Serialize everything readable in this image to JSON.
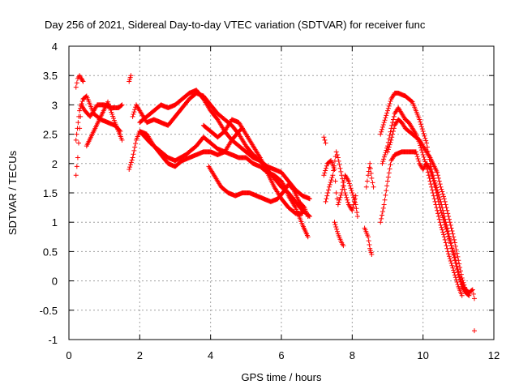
{
  "chart_data": {
    "type": "scatter",
    "title": "Day 256 of 2021, Sidereal Day-to-day VTEC variation (SDTVAR) for receiver func",
    "xlabel": "GPS time / hours",
    "ylabel": "SDTVAR / TECUs",
    "xlim": [
      0,
      12
    ],
    "ylim": [
      -1,
      4
    ],
    "xticks": [
      0,
      2,
      4,
      6,
      8,
      10,
      12
    ],
    "yticks": [
      -1,
      -0.5,
      0,
      0.5,
      1,
      1.5,
      2,
      2.5,
      3,
      3.5,
      4
    ],
    "grid": true,
    "marker": "+",
    "color": "#ff0000",
    "series_traces": [
      {
        "name": "trace-a",
        "points": [
          [
            0.2,
            1.8
          ],
          [
            0.25,
            2.1
          ],
          [
            0.3,
            2.6
          ],
          [
            0.35,
            3.0
          ],
          [
            0.45,
            2.9
          ],
          [
            0.6,
            2.8
          ],
          [
            0.8,
            3.0
          ],
          [
            1.0,
            3.0
          ],
          [
            1.2,
            2.95
          ],
          [
            1.4,
            2.95
          ],
          [
            1.5,
            3.0
          ]
        ]
      },
      {
        "name": "trace-b",
        "points": [
          [
            0.2,
            2.4
          ],
          [
            0.3,
            2.9
          ],
          [
            0.4,
            3.1
          ],
          [
            0.5,
            3.15
          ],
          [
            0.6,
            3.0
          ],
          [
            0.7,
            2.85
          ],
          [
            0.9,
            2.75
          ],
          [
            1.1,
            2.7
          ],
          [
            1.3,
            2.65
          ],
          [
            1.45,
            2.55
          ]
        ]
      },
      {
        "name": "trace-c",
        "points": [
          [
            0.5,
            2.3
          ],
          [
            0.7,
            2.55
          ],
          [
            0.9,
            2.8
          ],
          [
            1.1,
            3.05
          ],
          [
            1.3,
            2.7
          ],
          [
            1.5,
            2.4
          ]
        ]
      },
      {
        "name": "trace-d",
        "points": [
          [
            0.2,
            3.3
          ],
          [
            0.25,
            3.45
          ],
          [
            0.3,
            3.5
          ],
          [
            0.35,
            3.45
          ],
          [
            0.4,
            3.4
          ]
        ]
      },
      {
        "name": "trace-e",
        "points": [
          [
            1.7,
            3.4
          ],
          [
            1.75,
            3.5
          ]
        ]
      },
      {
        "name": "trace-f",
        "points": [
          [
            1.7,
            1.9
          ],
          [
            1.8,
            2.1
          ],
          [
            1.9,
            2.4
          ],
          [
            2.0,
            2.55
          ],
          [
            2.2,
            2.5
          ],
          [
            2.4,
            2.3
          ],
          [
            2.6,
            2.15
          ],
          [
            2.8,
            2.0
          ],
          [
            3.0,
            1.95
          ],
          [
            3.2,
            2.05
          ],
          [
            3.4,
            2.1
          ],
          [
            3.6,
            2.15
          ],
          [
            3.8,
            2.2
          ],
          [
            4.0,
            2.2
          ],
          [
            4.2,
            2.15
          ],
          [
            4.4,
            2.2
          ],
          [
            4.6,
            2.15
          ],
          [
            4.8,
            2.1
          ],
          [
            5.0,
            2.1
          ],
          [
            5.2,
            2.0
          ],
          [
            5.4,
            1.95
          ],
          [
            5.6,
            1.85
          ],
          [
            5.8,
            1.8
          ],
          [
            6.0,
            1.7
          ],
          [
            6.1,
            1.6
          ],
          [
            6.2,
            1.45
          ],
          [
            6.3,
            1.35
          ],
          [
            6.4,
            1.25
          ],
          [
            6.5,
            1.1
          ],
          [
            6.6,
            0.95
          ],
          [
            6.75,
            0.75
          ]
        ]
      },
      {
        "name": "trace-g",
        "points": [
          [
            1.8,
            2.8
          ],
          [
            1.9,
            3.0
          ],
          [
            2.0,
            2.9
          ],
          [
            2.2,
            2.7
          ],
          [
            2.4,
            2.75
          ],
          [
            2.6,
            2.7
          ],
          [
            2.8,
            2.65
          ],
          [
            3.0,
            2.8
          ],
          [
            3.2,
            2.95
          ],
          [
            3.4,
            3.1
          ],
          [
            3.6,
            3.2
          ],
          [
            3.8,
            3.15
          ],
          [
            4.0,
            3.0
          ],
          [
            4.2,
            2.85
          ],
          [
            4.4,
            2.75
          ],
          [
            4.6,
            2.65
          ],
          [
            4.8,
            2.5
          ],
          [
            5.0,
            2.3
          ],
          [
            5.2,
            2.15
          ],
          [
            5.4,
            2.05
          ],
          [
            5.6,
            1.95
          ],
          [
            5.8,
            1.9
          ],
          [
            6.0,
            1.85
          ],
          [
            6.2,
            1.7
          ],
          [
            6.4,
            1.55
          ],
          [
            6.6,
            1.45
          ],
          [
            6.8,
            1.4
          ]
        ]
      },
      {
        "name": "trace-h",
        "points": [
          [
            2.0,
            2.7
          ],
          [
            2.2,
            2.8
          ],
          [
            2.4,
            2.9
          ],
          [
            2.6,
            3.0
          ],
          [
            2.8,
            2.95
          ],
          [
            3.0,
            3.0
          ],
          [
            3.2,
            3.1
          ],
          [
            3.4,
            3.2
          ],
          [
            3.6,
            3.25
          ],
          [
            3.8,
            3.1
          ],
          [
            4.0,
            2.9
          ],
          [
            4.2,
            2.75
          ],
          [
            4.4,
            2.55
          ],
          [
            4.6,
            2.4
          ],
          [
            4.8,
            2.3
          ],
          [
            5.0,
            2.2
          ],
          [
            5.2,
            2.1
          ],
          [
            5.4,
            2.05
          ],
          [
            5.6,
            1.9
          ],
          [
            5.8,
            1.75
          ],
          [
            6.0,
            1.6
          ],
          [
            6.2,
            1.5
          ],
          [
            6.4,
            1.35
          ],
          [
            6.6,
            1.2
          ],
          [
            6.8,
            1.1
          ]
        ]
      },
      {
        "name": "trace-i",
        "points": [
          [
            2.0,
            2.55
          ],
          [
            2.3,
            2.35
          ],
          [
            2.6,
            2.2
          ],
          [
            2.8,
            2.1
          ],
          [
            3.0,
            2.05
          ],
          [
            3.3,
            2.15
          ],
          [
            3.6,
            2.3
          ],
          [
            3.8,
            2.45
          ],
          [
            4.0,
            2.35
          ],
          [
            4.2,
            2.25
          ],
          [
            4.4,
            2.2
          ],
          [
            4.6,
            2.4
          ],
          [
            4.8,
            2.55
          ],
          [
            4.9,
            2.6
          ]
        ]
      },
      {
        "name": "trace-j",
        "points": [
          [
            3.8,
            2.65
          ],
          [
            4.0,
            2.55
          ],
          [
            4.2,
            2.45
          ],
          [
            4.4,
            2.55
          ],
          [
            4.6,
            2.75
          ],
          [
            4.8,
            2.7
          ],
          [
            5.0,
            2.5
          ],
          [
            5.2,
            2.3
          ],
          [
            5.4,
            2.1
          ],
          [
            5.6,
            1.85
          ],
          [
            5.8,
            1.6
          ],
          [
            6.0,
            1.4
          ],
          [
            6.2,
            1.25
          ],
          [
            6.4,
            1.15
          ],
          [
            6.6,
            1.15
          ]
        ]
      },
      {
        "name": "trace-k",
        "points": [
          [
            3.95,
            1.95
          ],
          [
            4.1,
            1.8
          ],
          [
            4.3,
            1.6
          ],
          [
            4.5,
            1.5
          ],
          [
            4.7,
            1.45
          ],
          [
            4.9,
            1.5
          ],
          [
            5.1,
            1.5
          ],
          [
            5.3,
            1.45
          ],
          [
            5.5,
            1.4
          ],
          [
            5.7,
            1.35
          ],
          [
            5.9,
            1.4
          ],
          [
            6.1,
            1.55
          ],
          [
            6.2,
            1.65
          ],
          [
            6.35,
            1.55
          ],
          [
            6.5,
            1.35
          ],
          [
            6.65,
            1.25
          ],
          [
            6.75,
            1.1
          ]
        ]
      },
      {
        "name": "trace-l",
        "points": [
          [
            7.2,
            2.45
          ],
          [
            7.25,
            2.35
          ]
        ]
      },
      {
        "name": "trace-m",
        "points": [
          [
            7.2,
            1.8
          ],
          [
            7.3,
            2.0
          ],
          [
            7.4,
            2.05
          ],
          [
            7.5,
            1.9
          ],
          [
            7.55,
            1.5
          ],
          [
            7.6,
            1.3
          ],
          [
            7.7,
            1.5
          ],
          [
            7.8,
            1.8
          ],
          [
            7.9,
            1.7
          ],
          [
            8.0,
            1.5
          ],
          [
            8.1,
            1.3
          ],
          [
            8.15,
            1.1
          ]
        ]
      },
      {
        "name": "trace-n",
        "points": [
          [
            7.25,
            1.35
          ],
          [
            7.35,
            1.6
          ],
          [
            7.45,
            1.8
          ],
          [
            7.55,
            2.2
          ],
          [
            7.6,
            2.1
          ],
          [
            7.7,
            1.8
          ],
          [
            7.8,
            1.5
          ],
          [
            7.9,
            1.3
          ],
          [
            8.0,
            1.2
          ],
          [
            8.1,
            1.45
          ]
        ]
      },
      {
        "name": "trace-o",
        "points": [
          [
            7.5,
            1.0
          ],
          [
            7.6,
            0.8
          ],
          [
            7.7,
            0.65
          ],
          [
            7.75,
            0.6
          ]
        ]
      },
      {
        "name": "trace-p",
        "points": [
          [
            8.35,
            0.9
          ],
          [
            8.45,
            0.75
          ],
          [
            8.5,
            0.55
          ],
          [
            8.55,
            0.45
          ]
        ]
      },
      {
        "name": "trace-q",
        "points": [
          [
            8.4,
            1.6
          ],
          [
            8.45,
            1.8
          ],
          [
            8.5,
            2.0
          ],
          [
            8.55,
            1.75
          ],
          [
            8.6,
            1.6
          ]
        ]
      },
      {
        "name": "trace-r",
        "points": [
          [
            8.8,
            1.0
          ],
          [
            8.9,
            1.3
          ],
          [
            9.0,
            1.7
          ],
          [
            9.1,
            2.05
          ],
          [
            9.2,
            2.15
          ],
          [
            9.4,
            2.2
          ],
          [
            9.6,
            2.2
          ],
          [
            9.8,
            2.2
          ],
          [
            9.9,
            2.0
          ],
          [
            10.0,
            1.9
          ],
          [
            10.1,
            2.0
          ],
          [
            10.2,
            1.9
          ],
          [
            10.3,
            1.7
          ],
          [
            10.4,
            1.45
          ],
          [
            10.5,
            1.2
          ],
          [
            10.6,
            1.0
          ],
          [
            10.7,
            0.8
          ],
          [
            10.8,
            0.6
          ],
          [
            10.9,
            0.4
          ],
          [
            11.0,
            0.15
          ],
          [
            11.1,
            -0.05
          ],
          [
            11.2,
            -0.15
          ],
          [
            11.3,
            -0.2
          ]
        ]
      },
      {
        "name": "trace-s",
        "points": [
          [
            8.8,
            2.5
          ],
          [
            8.9,
            2.7
          ],
          [
            9.0,
            2.9
          ],
          [
            9.1,
            3.1
          ],
          [
            9.2,
            3.2
          ],
          [
            9.3,
            3.2
          ],
          [
            9.5,
            3.15
          ],
          [
            9.7,
            3.05
          ],
          [
            9.9,
            2.75
          ],
          [
            10.0,
            2.55
          ],
          [
            10.1,
            2.35
          ],
          [
            10.2,
            2.0
          ],
          [
            10.3,
            1.75
          ],
          [
            10.4,
            1.55
          ],
          [
            10.5,
            1.35
          ],
          [
            10.6,
            1.1
          ],
          [
            10.7,
            0.85
          ],
          [
            10.8,
            0.6
          ],
          [
            10.9,
            0.35
          ],
          [
            11.0,
            0.1
          ],
          [
            11.1,
            -0.1
          ],
          [
            11.2,
            -0.2
          ],
          [
            11.3,
            -0.25
          ]
        ]
      },
      {
        "name": "trace-t",
        "points": [
          [
            8.85,
            2.0
          ],
          [
            9.0,
            2.3
          ],
          [
            9.1,
            2.6
          ],
          [
            9.2,
            2.85
          ],
          [
            9.3,
            2.95
          ],
          [
            9.4,
            2.85
          ],
          [
            9.5,
            2.75
          ],
          [
            9.6,
            2.7
          ],
          [
            9.7,
            2.6
          ],
          [
            9.8,
            2.5
          ],
          [
            9.9,
            2.35
          ],
          [
            10.0,
            2.15
          ],
          [
            10.1,
            1.95
          ],
          [
            10.2,
            1.7
          ],
          [
            10.3,
            1.45
          ],
          [
            10.4,
            1.2
          ],
          [
            10.5,
            0.95
          ],
          [
            10.6,
            0.75
          ],
          [
            10.7,
            0.5
          ],
          [
            10.8,
            0.3
          ],
          [
            10.9,
            0.1
          ],
          [
            11.0,
            -0.1
          ],
          [
            11.1,
            -0.25
          ]
        ]
      },
      {
        "name": "trace-u",
        "points": [
          [
            9.0,
            2.2
          ],
          [
            9.1,
            2.4
          ],
          [
            9.2,
            2.65
          ],
          [
            9.3,
            2.75
          ],
          [
            9.4,
            2.7
          ],
          [
            9.5,
            2.6
          ],
          [
            9.7,
            2.5
          ],
          [
            9.9,
            2.4
          ],
          [
            10.0,
            2.3
          ],
          [
            10.2,
            2.1
          ],
          [
            10.4,
            1.85
          ],
          [
            10.5,
            1.6
          ],
          [
            10.6,
            1.4
          ],
          [
            10.7,
            1.15
          ],
          [
            10.8,
            0.9
          ],
          [
            10.9,
            0.65
          ],
          [
            11.0,
            0.35
          ],
          [
            11.1,
            0.05
          ],
          [
            11.2,
            -0.15
          ],
          [
            11.3,
            -0.2
          ],
          [
            11.4,
            -0.15
          ],
          [
            11.45,
            -0.3
          ]
        ]
      },
      {
        "name": "trace-v",
        "points": [
          [
            11.45,
            -0.85
          ]
        ]
      }
    ]
  }
}
